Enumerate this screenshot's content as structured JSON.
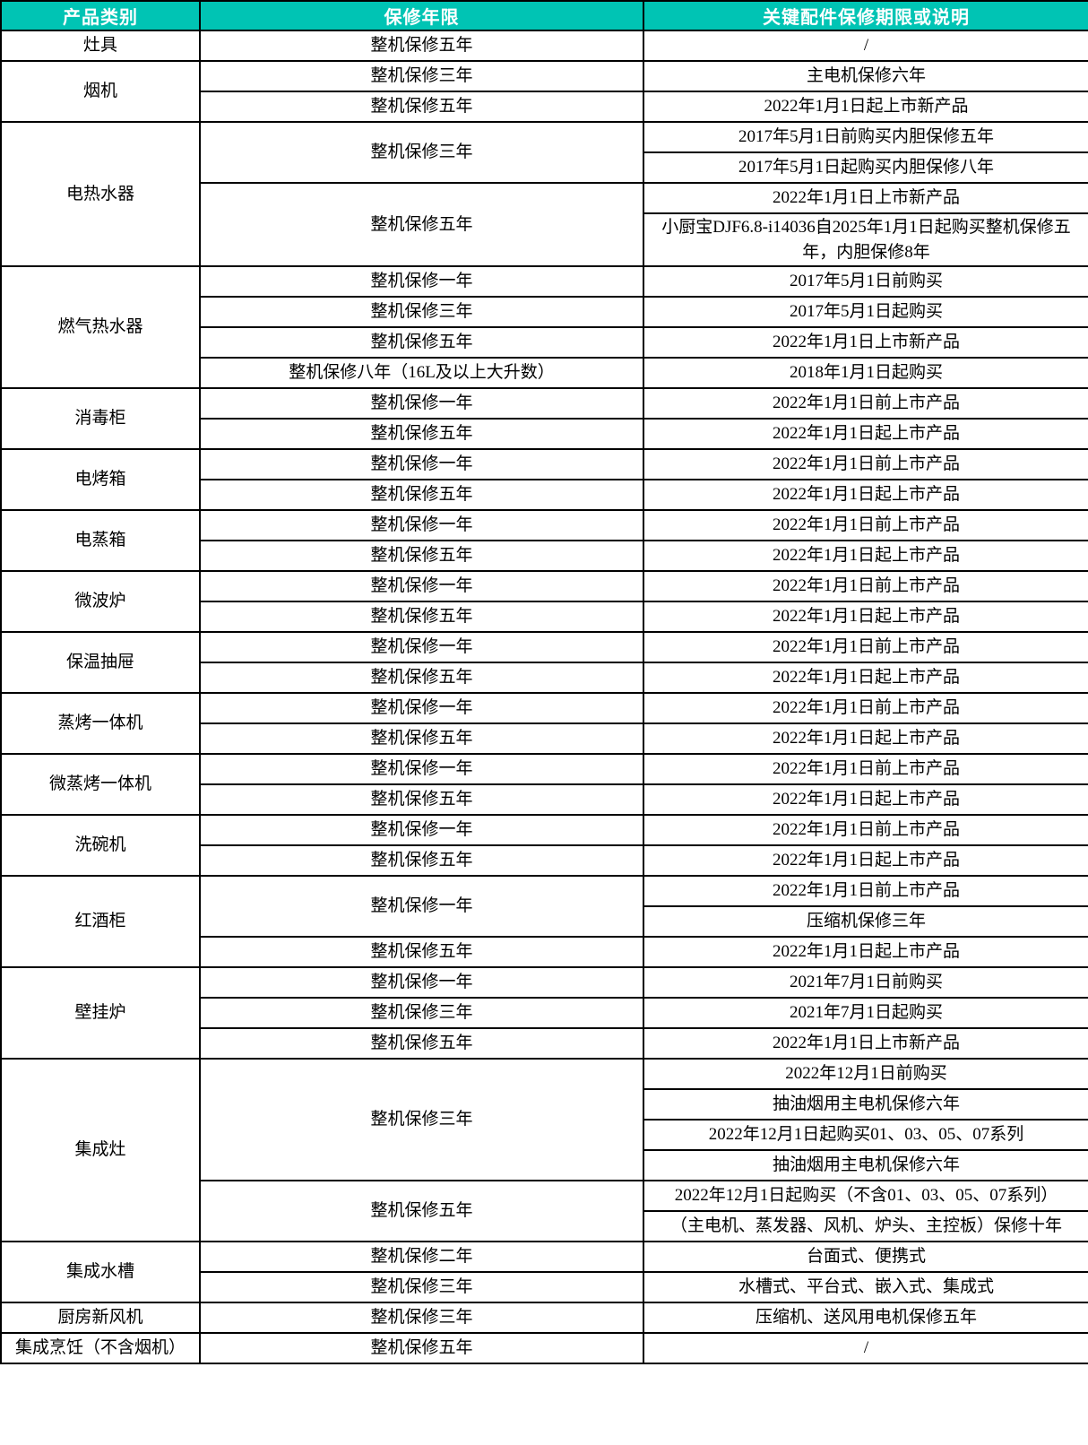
{
  "table": {
    "colors": {
      "header_bg": "#00C4B4",
      "header_text": "#FFFFFF",
      "border": "#000000",
      "body_text": "#000000",
      "body_bg": "#FFFFFF"
    },
    "headers": [
      {
        "label": "产品类别"
      },
      {
        "label": "保修年限"
      },
      {
        "label": "关键配件保修期限或说明"
      }
    ],
    "categories": [
      {
        "name": "灶具",
        "groups": [
          {
            "warranty": "整机保修五年",
            "details": [
              "/"
            ]
          }
        ]
      },
      {
        "name": "烟机",
        "groups": [
          {
            "warranty": "整机保修三年",
            "details": [
              "主电机保修六年"
            ]
          },
          {
            "warranty": "整机保修五年",
            "details": [
              "2022年1月1日起上市新产品"
            ]
          }
        ]
      },
      {
        "name": "电热水器",
        "groups": [
          {
            "warranty": "整机保修三年",
            "details": [
              "2017年5月1日前购买内胆保修五年",
              "2017年5月1日起购买内胆保修八年"
            ]
          },
          {
            "warranty": "整机保修五年",
            "details": [
              "2022年1月1日上市新产品",
              "小厨宝DJF6.8-i14036自2025年1月1日起购买整机保修五年，内胆保修8年"
            ]
          }
        ]
      },
      {
        "name": "燃气热水器",
        "groups": [
          {
            "warranty": "整机保修一年",
            "details": [
              "2017年5月1日前购买"
            ]
          },
          {
            "warranty": "整机保修三年",
            "details": [
              "2017年5月1日起购买"
            ]
          },
          {
            "warranty": "整机保修五年",
            "details": [
              "2022年1月1日上市新产品"
            ]
          },
          {
            "warranty": "整机保修八年（16L及以上大升数）",
            "details": [
              "2018年1月1日起购买"
            ]
          }
        ]
      },
      {
        "name": "消毒柜",
        "groups": [
          {
            "warranty": "整机保修一年",
            "details": [
              "2022年1月1日前上市产品"
            ]
          },
          {
            "warranty": "整机保修五年",
            "details": [
              "2022年1月1日起上市产品"
            ]
          }
        ]
      },
      {
        "name": "电烤箱",
        "groups": [
          {
            "warranty": "整机保修一年",
            "details": [
              "2022年1月1日前上市产品"
            ]
          },
          {
            "warranty": "整机保修五年",
            "details": [
              "2022年1月1日起上市产品"
            ]
          }
        ]
      },
      {
        "name": "电蒸箱",
        "groups": [
          {
            "warranty": "整机保修一年",
            "details": [
              "2022年1月1日前上市产品"
            ]
          },
          {
            "warranty": "整机保修五年",
            "details": [
              "2022年1月1日起上市产品"
            ]
          }
        ]
      },
      {
        "name": "微波炉",
        "groups": [
          {
            "warranty": "整机保修一年",
            "details": [
              "2022年1月1日前上市产品"
            ]
          },
          {
            "warranty": "整机保修五年",
            "details": [
              "2022年1月1日起上市产品"
            ]
          }
        ]
      },
      {
        "name": "保温抽屉",
        "groups": [
          {
            "warranty": "整机保修一年",
            "details": [
              "2022年1月1日前上市产品"
            ]
          },
          {
            "warranty": "整机保修五年",
            "details": [
              "2022年1月1日起上市产品"
            ]
          }
        ]
      },
      {
        "name": "蒸烤一体机",
        "groups": [
          {
            "warranty": "整机保修一年",
            "details": [
              "2022年1月1日前上市产品"
            ]
          },
          {
            "warranty": "整机保修五年",
            "details": [
              "2022年1月1日起上市产品"
            ]
          }
        ]
      },
      {
        "name": "微蒸烤一体机",
        "groups": [
          {
            "warranty": "整机保修一年",
            "details": [
              "2022年1月1日前上市产品"
            ]
          },
          {
            "warranty": "整机保修五年",
            "details": [
              "2022年1月1日起上市产品"
            ]
          }
        ]
      },
      {
        "name": "洗碗机",
        "groups": [
          {
            "warranty": "整机保修一年",
            "details": [
              "2022年1月1日前上市产品"
            ]
          },
          {
            "warranty": "整机保修五年",
            "details": [
              "2022年1月1日起上市产品"
            ]
          }
        ]
      },
      {
        "name": "红酒柜",
        "groups": [
          {
            "warranty": "整机保修一年",
            "details": [
              "2022年1月1日前上市产品",
              "压缩机保修三年"
            ]
          },
          {
            "warranty": "整机保修五年",
            "details": [
              "2022年1月1日起上市产品"
            ]
          }
        ]
      },
      {
        "name": "壁挂炉",
        "groups": [
          {
            "warranty": "整机保修一年",
            "details": [
              "2021年7月1日前购买"
            ]
          },
          {
            "warranty": "整机保修三年",
            "details": [
              "2021年7月1日起购买"
            ]
          },
          {
            "warranty": "整机保修五年",
            "details": [
              "2022年1月1日上市新产品"
            ]
          }
        ]
      },
      {
        "name": "集成灶",
        "groups": [
          {
            "warranty": "整机保修三年",
            "details": [
              "2022年12月1日前购买",
              "抽油烟用主电机保修六年",
              "2022年12月1日起购买01、03、05、07系列",
              "抽油烟用主电机保修六年"
            ]
          },
          {
            "warranty": "整机保修五年",
            "details": [
              "2022年12月1日起购买（不含01、03、05、07系列）",
              "（主电机、蒸发器、风机、炉头、主控板）保修十年"
            ]
          }
        ]
      },
      {
        "name": "集成水槽",
        "groups": [
          {
            "warranty": "整机保修二年",
            "details": [
              "台面式、便携式"
            ]
          },
          {
            "warranty": "整机保修三年",
            "details": [
              "水槽式、平台式、嵌入式、集成式"
            ]
          }
        ]
      },
      {
        "name": "厨房新风机",
        "groups": [
          {
            "warranty": "整机保修三年",
            "details": [
              "压缩机、送风用电机保修五年"
            ]
          }
        ]
      },
      {
        "name": "集成烹饪（不含烟机）",
        "groups": [
          {
            "warranty": "整机保修五年",
            "details": [
              "/"
            ]
          }
        ]
      }
    ]
  }
}
